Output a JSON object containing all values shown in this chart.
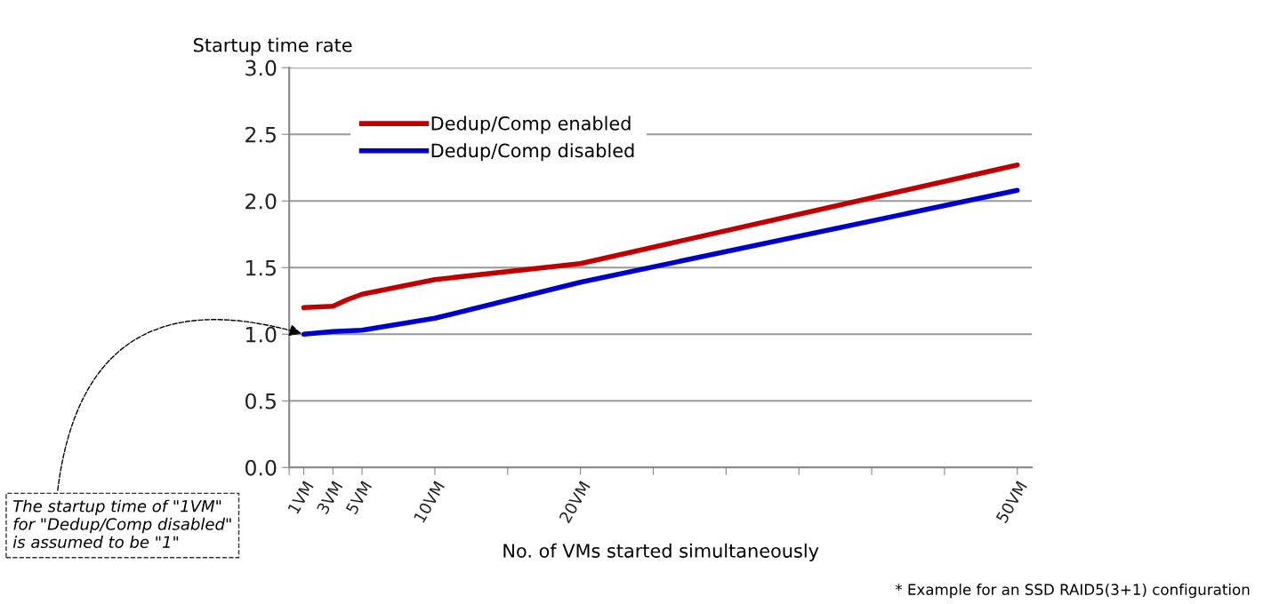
{
  "chart_data": {
    "type": "line",
    "ylabel": "Startup time rate",
    "xlabel": "No. of VMs started simultaneously",
    "x": [
      1,
      3,
      4,
      5,
      10,
      20,
      50
    ],
    "series": [
      {
        "name": "Dedup/Comp enabled",
        "color": "#c00000",
        "values": [
          1.2,
          1.21,
          1.26,
          1.3,
          1.41,
          1.53,
          2.27
        ]
      },
      {
        "name": "Dedup/Comp disabled",
        "color": "#0000cc",
        "values": [
          1.0,
          1.02,
          1.025,
          1.03,
          1.12,
          1.39,
          2.08
        ]
      }
    ],
    "xlim": [
      0,
      51
    ],
    "xticks": [
      {
        "value": 0,
        "label": null
      },
      {
        "value": 1,
        "label": "1VM"
      },
      {
        "value": 3,
        "label": "3VM"
      },
      {
        "value": 5,
        "label": "5VM"
      },
      {
        "value": 10,
        "label": "10VM"
      },
      {
        "value": 15,
        "label": null
      },
      {
        "value": 20,
        "label": "20VM"
      },
      {
        "value": 25,
        "label": null
      },
      {
        "value": 30,
        "label": null
      },
      {
        "value": 35,
        "label": null
      },
      {
        "value": 40,
        "label": null
      },
      {
        "value": 45,
        "label": null
      },
      {
        "value": 50,
        "label": "50VM"
      }
    ],
    "ylim": [
      0,
      3
    ],
    "yticks": [
      {
        "value": 0,
        "label": "0.0"
      },
      {
        "value": 0.5,
        "label": "0.5"
      },
      {
        "value": 1,
        "label": "1.0"
      },
      {
        "value": 1.5,
        "label": "1.5"
      },
      {
        "value": 2,
        "label": "2.0"
      },
      {
        "value": 2.5,
        "label": "2.5"
      },
      {
        "value": 3,
        "label": "3.0"
      }
    ],
    "grid": "y",
    "legend": "top left",
    "marker": "none",
    "line_style": "solid",
    "annotations": [
      {
        "text": "The startup time of \"1VM\"\nfor \"Dedup/Comp disabled\"\nis assumed to be \"1\"",
        "x": 1,
        "y": 1.0
      },
      "* Example for an SSD RAID5(3+1) configuration"
    ]
  }
}
